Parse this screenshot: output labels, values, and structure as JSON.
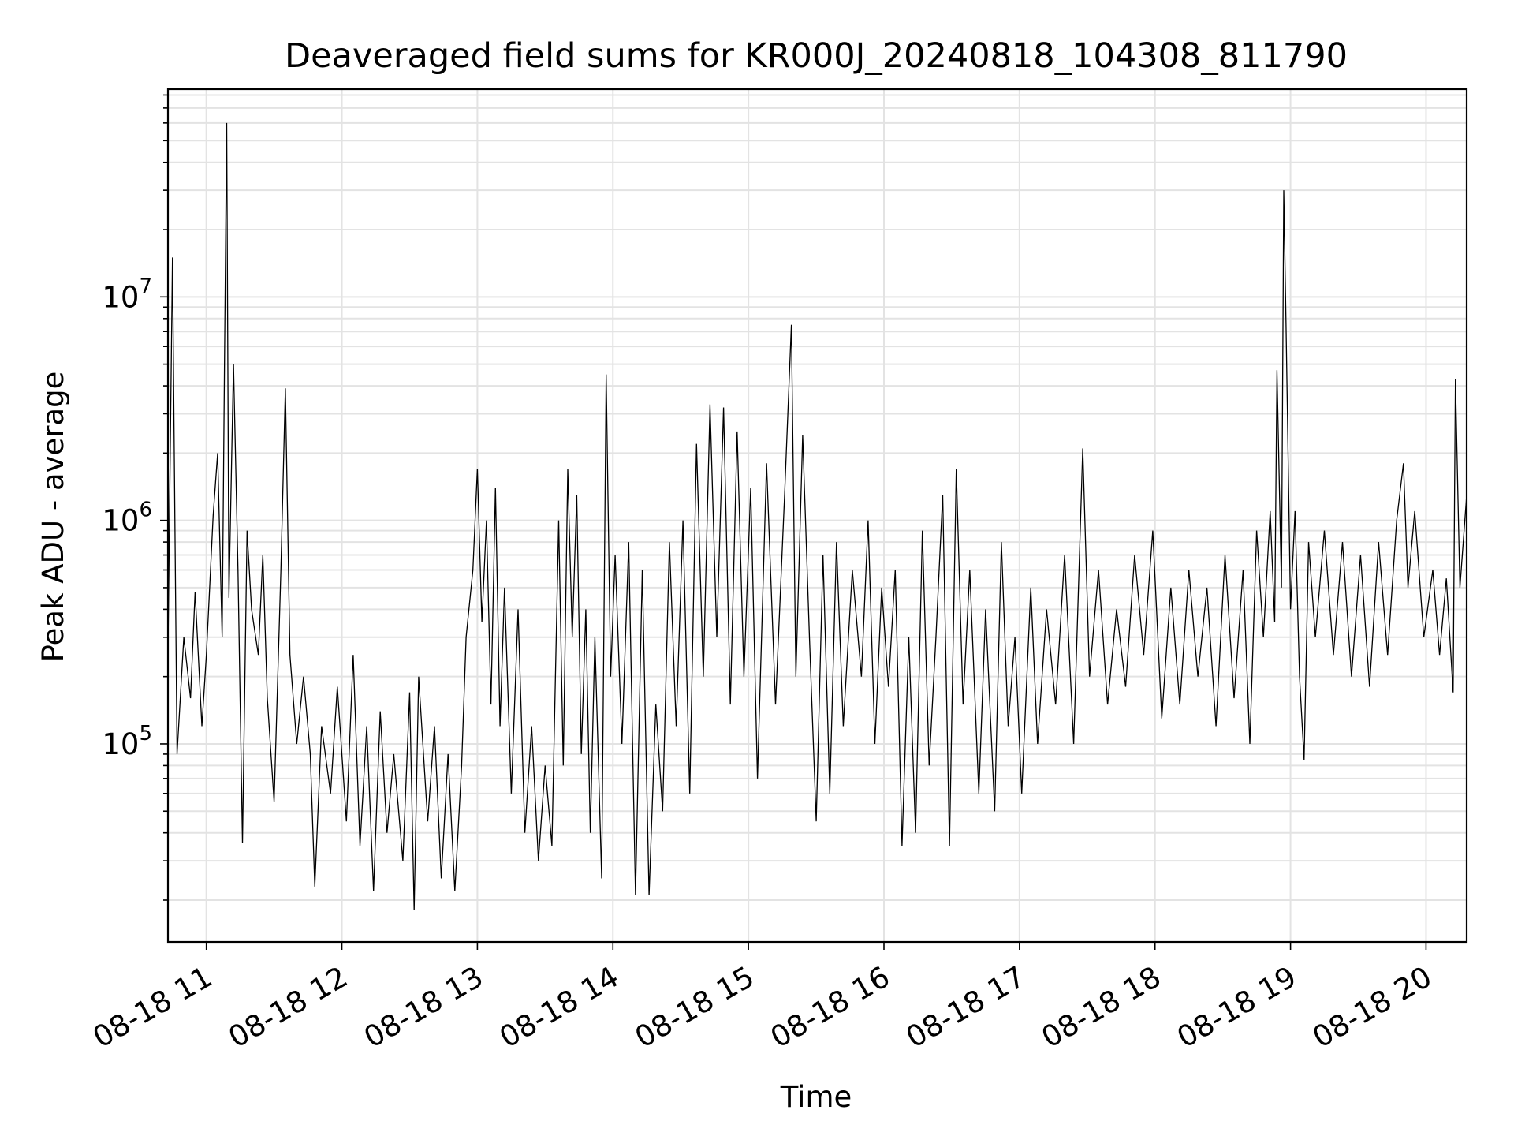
{
  "chart_data": {
    "type": "line",
    "title": "Deaveraged field sums for KR000J_20240818_104308_811790",
    "xlabel": "Time",
    "ylabel": "Peak ADU - average",
    "x_ticks": [
      "08-18 11",
      "08-18 12",
      "08-18 13",
      "08-18 14",
      "08-18 15",
      "08-18 16",
      "08-18 17",
      "08-18 18",
      "08-18 19",
      "08-18 20"
    ],
    "y_ticks": [
      {
        "base": "10",
        "exp": "5",
        "value": 100000
      },
      {
        "base": "10",
        "exp": "6",
        "value": 1000000
      },
      {
        "base": "10",
        "exp": "7",
        "value": 10000000
      }
    ],
    "xlim": [
      "2024-08-18 10:43",
      "2024-08-18 20:18"
    ],
    "ylim": [
      13000,
      85000000
    ],
    "yscale": "log",
    "grid": true,
    "line_color": "#000000",
    "series": [
      {
        "name": "",
        "points": [
          [
            "2024-08-18 10:43",
            260000
          ],
          [
            "2024-08-18 10:45",
            15000000
          ],
          [
            "2024-08-18 10:47",
            90000
          ],
          [
            "2024-08-18 10:50",
            300000
          ],
          [
            "2024-08-18 10:53",
            160000
          ],
          [
            "2024-08-18 10:55",
            480000
          ],
          [
            "2024-08-18 10:58",
            120000
          ],
          [
            "2024-08-18 11:00",
            250000
          ],
          [
            "2024-08-18 11:03",
            1050000
          ],
          [
            "2024-08-18 11:05",
            2000000
          ],
          [
            "2024-08-18 11:07",
            300000
          ],
          [
            "2024-08-18 11:08",
            4700000
          ],
          [
            "2024-08-18 11:09",
            60000000
          ],
          [
            "2024-08-18 11:10",
            450000
          ],
          [
            "2024-08-18 11:12",
            5000000
          ],
          [
            "2024-08-18 11:14",
            600000
          ],
          [
            "2024-08-18 11:16",
            36000
          ],
          [
            "2024-08-18 11:18",
            900000
          ],
          [
            "2024-08-18 11:20",
            400000
          ],
          [
            "2024-08-18 11:23",
            250000
          ],
          [
            "2024-08-18 11:25",
            700000
          ],
          [
            "2024-08-18 11:27",
            160000
          ],
          [
            "2024-08-18 11:30",
            55000
          ],
          [
            "2024-08-18 11:33",
            600000
          ],
          [
            "2024-08-18 11:35",
            3900000
          ],
          [
            "2024-08-18 11:37",
            250000
          ],
          [
            "2024-08-18 11:40",
            100000
          ],
          [
            "2024-08-18 11:43",
            200000
          ],
          [
            "2024-08-18 11:46",
            90000
          ],
          [
            "2024-08-18 11:48",
            23000
          ],
          [
            "2024-08-18 11:51",
            120000
          ],
          [
            "2024-08-18 11:55",
            60000
          ],
          [
            "2024-08-18 11:58",
            180000
          ],
          [
            "2024-08-18 12:02",
            45000
          ],
          [
            "2024-08-18 12:05",
            250000
          ],
          [
            "2024-08-18 12:08",
            35000
          ],
          [
            "2024-08-18 12:11",
            120000
          ],
          [
            "2024-08-18 12:14",
            22000
          ],
          [
            "2024-08-18 12:17",
            140000
          ],
          [
            "2024-08-18 12:20",
            40000
          ],
          [
            "2024-08-18 12:23",
            90000
          ],
          [
            "2024-08-18 12:27",
            30000
          ],
          [
            "2024-08-18 12:30",
            170000
          ],
          [
            "2024-08-18 12:32",
            18000
          ],
          [
            "2024-08-18 12:34",
            200000
          ],
          [
            "2024-08-18 12:38",
            45000
          ],
          [
            "2024-08-18 12:41",
            120000
          ],
          [
            "2024-08-18 12:44",
            25000
          ],
          [
            "2024-08-18 12:47",
            90000
          ],
          [
            "2024-08-18 12:50",
            22000
          ],
          [
            "2024-08-18 12:53",
            80000
          ],
          [
            "2024-08-18 12:55",
            300000
          ],
          [
            "2024-08-18 12:58",
            600000
          ],
          [
            "2024-08-18 13:00",
            1700000
          ],
          [
            "2024-08-18 13:02",
            350000
          ],
          [
            "2024-08-18 13:04",
            1000000
          ],
          [
            "2024-08-18 13:06",
            150000
          ],
          [
            "2024-08-18 13:08",
            1400000
          ],
          [
            "2024-08-18 13:10",
            120000
          ],
          [
            "2024-08-18 13:12",
            500000
          ],
          [
            "2024-08-18 13:15",
            60000
          ],
          [
            "2024-08-18 13:18",
            400000
          ],
          [
            "2024-08-18 13:21",
            40000
          ],
          [
            "2024-08-18 13:24",
            120000
          ],
          [
            "2024-08-18 13:27",
            30000
          ],
          [
            "2024-08-18 13:30",
            80000
          ],
          [
            "2024-08-18 13:33",
            35000
          ],
          [
            "2024-08-18 13:36",
            1000000
          ],
          [
            "2024-08-18 13:38",
            80000
          ],
          [
            "2024-08-18 13:40",
            1700000
          ],
          [
            "2024-08-18 13:42",
            300000
          ],
          [
            "2024-08-18 13:44",
            1300000
          ],
          [
            "2024-08-18 13:46",
            90000
          ],
          [
            "2024-08-18 13:48",
            400000
          ],
          [
            "2024-08-18 13:50",
            40000
          ],
          [
            "2024-08-18 13:52",
            300000
          ],
          [
            "2024-08-18 13:55",
            25000
          ],
          [
            "2024-08-18 13:57",
            4500000
          ],
          [
            "2024-08-18 13:59",
            200000
          ],
          [
            "2024-08-18 14:01",
            700000
          ],
          [
            "2024-08-18 14:04",
            100000
          ],
          [
            "2024-08-18 14:07",
            800000
          ],
          [
            "2024-08-18 14:10",
            21000
          ],
          [
            "2024-08-18 14:13",
            600000
          ],
          [
            "2024-08-18 14:16",
            21000
          ],
          [
            "2024-08-18 14:19",
            150000
          ],
          [
            "2024-08-18 14:22",
            50000
          ],
          [
            "2024-08-18 14:25",
            800000
          ],
          [
            "2024-08-18 14:28",
            120000
          ],
          [
            "2024-08-18 14:31",
            1000000
          ],
          [
            "2024-08-18 14:34",
            60000
          ],
          [
            "2024-08-18 14:37",
            2200000
          ],
          [
            "2024-08-18 14:40",
            200000
          ],
          [
            "2024-08-18 14:43",
            3300000
          ],
          [
            "2024-08-18 14:46",
            300000
          ],
          [
            "2024-08-18 14:49",
            3200000
          ],
          [
            "2024-08-18 14:52",
            150000
          ],
          [
            "2024-08-18 14:55",
            2500000
          ],
          [
            "2024-08-18 14:58",
            200000
          ],
          [
            "2024-08-18 15:01",
            1400000
          ],
          [
            "2024-08-18 15:04",
            70000
          ],
          [
            "2024-08-18 15:08",
            1800000
          ],
          [
            "2024-08-18 15:12",
            150000
          ],
          [
            "2024-08-18 15:16",
            1300000
          ],
          [
            "2024-08-18 15:19",
            7500000
          ],
          [
            "2024-08-18 15:21",
            200000
          ],
          [
            "2024-08-18 15:24",
            2400000
          ],
          [
            "2024-08-18 15:27",
            300000
          ],
          [
            "2024-08-18 15:30",
            45000
          ],
          [
            "2024-08-18 15:33",
            700000
          ],
          [
            "2024-08-18 15:36",
            60000
          ],
          [
            "2024-08-18 15:39",
            800000
          ],
          [
            "2024-08-18 15:42",
            120000
          ],
          [
            "2024-08-18 15:46",
            600000
          ],
          [
            "2024-08-18 15:50",
            200000
          ],
          [
            "2024-08-18 15:53",
            1000000
          ],
          [
            "2024-08-18 15:56",
            100000
          ],
          [
            "2024-08-18 15:59",
            500000
          ],
          [
            "2024-08-18 16:02",
            180000
          ],
          [
            "2024-08-18 16:05",
            600000
          ],
          [
            "2024-08-18 16:08",
            35000
          ],
          [
            "2024-08-18 16:11",
            300000
          ],
          [
            "2024-08-18 16:14",
            40000
          ],
          [
            "2024-08-18 16:17",
            900000
          ],
          [
            "2024-08-18 16:20",
            80000
          ],
          [
            "2024-08-18 16:23",
            300000
          ],
          [
            "2024-08-18 16:26",
            1300000
          ],
          [
            "2024-08-18 16:29",
            35000
          ],
          [
            "2024-08-18 16:32",
            1700000
          ],
          [
            "2024-08-18 16:35",
            150000
          ],
          [
            "2024-08-18 16:38",
            600000
          ],
          [
            "2024-08-18 16:42",
            60000
          ],
          [
            "2024-08-18 16:45",
            400000
          ],
          [
            "2024-08-18 16:49",
            50000
          ],
          [
            "2024-08-18 16:52",
            800000
          ],
          [
            "2024-08-18 16:55",
            120000
          ],
          [
            "2024-08-18 16:58",
            300000
          ],
          [
            "2024-08-18 17:01",
            60000
          ],
          [
            "2024-08-18 17:05",
            500000
          ],
          [
            "2024-08-18 17:08",
            100000
          ],
          [
            "2024-08-18 17:12",
            400000
          ],
          [
            "2024-08-18 17:16",
            150000
          ],
          [
            "2024-08-18 17:20",
            700000
          ],
          [
            "2024-08-18 17:24",
            100000
          ],
          [
            "2024-08-18 17:28",
            2100000
          ],
          [
            "2024-08-18 17:31",
            200000
          ],
          [
            "2024-08-18 17:35",
            600000
          ],
          [
            "2024-08-18 17:39",
            150000
          ],
          [
            "2024-08-18 17:43",
            400000
          ],
          [
            "2024-08-18 17:47",
            180000
          ],
          [
            "2024-08-18 17:51",
            700000
          ],
          [
            "2024-08-18 17:55",
            250000
          ],
          [
            "2024-08-18 17:59",
            900000
          ],
          [
            "2024-08-18 18:03",
            130000
          ],
          [
            "2024-08-18 18:07",
            500000
          ],
          [
            "2024-08-18 18:11",
            150000
          ],
          [
            "2024-08-18 18:15",
            600000
          ],
          [
            "2024-08-18 18:19",
            200000
          ],
          [
            "2024-08-18 18:23",
            500000
          ],
          [
            "2024-08-18 18:27",
            120000
          ],
          [
            "2024-08-18 18:31",
            700000
          ],
          [
            "2024-08-18 18:35",
            160000
          ],
          [
            "2024-08-18 18:39",
            600000
          ],
          [
            "2024-08-18 18:42",
            100000
          ],
          [
            "2024-08-18 18:45",
            900000
          ],
          [
            "2024-08-18 18:48",
            300000
          ],
          [
            "2024-08-18 18:51",
            1100000
          ],
          [
            "2024-08-18 18:53",
            350000
          ],
          [
            "2024-08-18 18:54",
            4700000
          ],
          [
            "2024-08-18 18:56",
            500000
          ],
          [
            "2024-08-18 18:57",
            30000000
          ],
          [
            "2024-08-18 18:58",
            7500000
          ],
          [
            "2024-08-18 19:00",
            400000
          ],
          [
            "2024-08-18 19:02",
            1100000
          ],
          [
            "2024-08-18 19:04",
            200000
          ],
          [
            "2024-08-18 19:06",
            85000
          ],
          [
            "2024-08-18 19:08",
            800000
          ],
          [
            "2024-08-18 19:11",
            300000
          ],
          [
            "2024-08-18 19:15",
            900000
          ],
          [
            "2024-08-18 19:19",
            250000
          ],
          [
            "2024-08-18 19:23",
            800000
          ],
          [
            "2024-08-18 19:27",
            200000
          ],
          [
            "2024-08-18 19:31",
            700000
          ],
          [
            "2024-08-18 19:35",
            180000
          ],
          [
            "2024-08-18 19:39",
            800000
          ],
          [
            "2024-08-18 19:43",
            250000
          ],
          [
            "2024-08-18 19:47",
            1000000
          ],
          [
            "2024-08-18 19:50",
            1800000
          ],
          [
            "2024-08-18 19:52",
            500000
          ],
          [
            "2024-08-18 19:55",
            1100000
          ],
          [
            "2024-08-18 19:59",
            300000
          ],
          [
            "2024-08-18 20:03",
            600000
          ],
          [
            "2024-08-18 20:06",
            250000
          ],
          [
            "2024-08-18 20:09",
            550000
          ],
          [
            "2024-08-18 20:12",
            170000
          ],
          [
            "2024-08-18 20:13",
            4300000
          ],
          [
            "2024-08-18 20:15",
            500000
          ],
          [
            "2024-08-18 20:18",
            1300000
          ]
        ]
      }
    ]
  }
}
